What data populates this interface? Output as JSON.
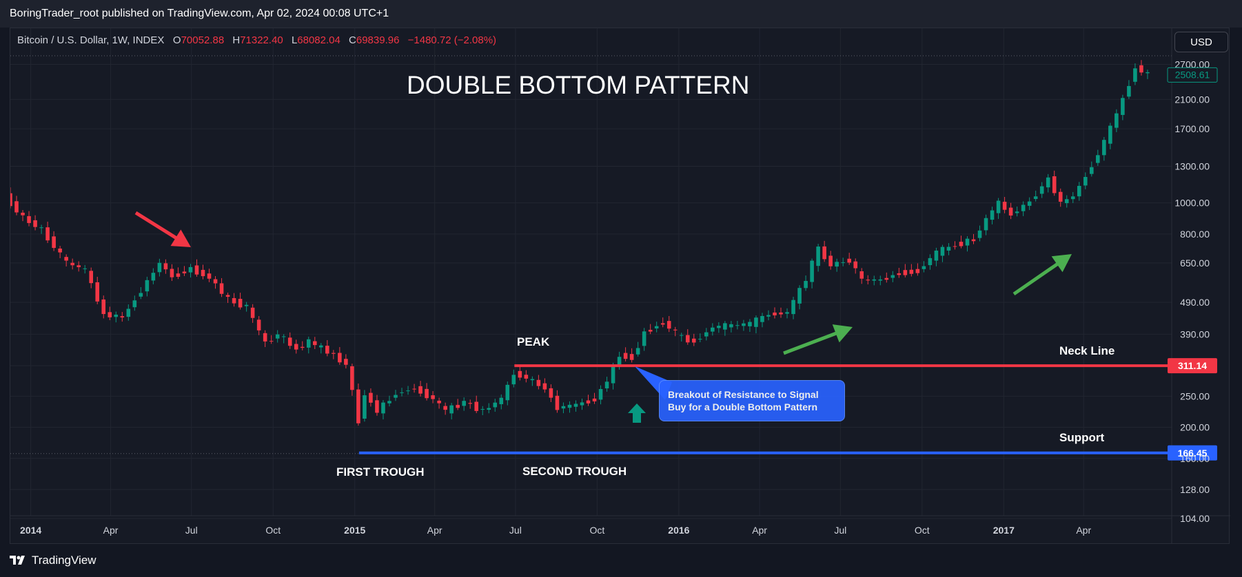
{
  "header": {
    "publisher_line": "BoringTrader_root published on TradingView.com, Apr 02, 2024 00:08 UTC+1"
  },
  "legend": {
    "symbol": "Bitcoin / U.S. Dollar, 1W, INDEX",
    "open_label": "O",
    "open": "70052.88",
    "high_label": "H",
    "high": "71322.40",
    "low_label": "L",
    "low": "68082.04",
    "close_label": "C",
    "close": "69839.96",
    "change": "−1480.72 (−2.08%)"
  },
  "currency_button": "USD",
  "footer": {
    "brand": "TradingView"
  },
  "annotations": {
    "title": "DOUBLE BOTTOM PATTERN",
    "peak": "PEAK",
    "first_trough": "FIRST TROUGH",
    "second_trough": "SECOND TROUGH",
    "neck_line": "Neck Line",
    "support": "Support",
    "callout": "Breakout of Resistance  to Signal Buy for a Double Bottom Pattern"
  },
  "colors": {
    "up": "#089981",
    "down": "#f23645",
    "neck_line": "#f23645",
    "support_line": "#2962ff",
    "arrow_down": "#f23645",
    "arrow_up": "#4caf50",
    "background": "#161a25"
  },
  "chart_data": {
    "type": "candlestick",
    "title": "Bitcoin / U.S. Dollar, 1W, INDEX",
    "y_scale": "log",
    "ylim": [
      104,
      2900
    ],
    "y_ticks": [
      "104.00",
      "128.00",
      "160.00",
      "200.00",
      "250.00",
      "311.14",
      "390.00",
      "490.00",
      "650.00",
      "800.00",
      "1000.00",
      "1300.00",
      "1700.00",
      "2100.00",
      "2700.00"
    ],
    "y_tick_values": [
      104,
      128,
      160,
      200,
      250,
      311,
      390,
      490,
      650,
      800,
      1000,
      1300,
      1700,
      2100,
      2700
    ],
    "x_labels": [
      "2014",
      "Apr",
      "Jul",
      "Oct",
      "2015",
      "Apr",
      "Jul",
      "Oct",
      "2016",
      "Apr",
      "Jul",
      "Oct",
      "2017",
      "Apr"
    ],
    "x_label_dates": [
      "2014-01-01",
      "2014-04-01",
      "2014-07-01",
      "2014-10-01",
      "2015-01-01",
      "2015-04-01",
      "2015-07-01",
      "2015-10-01",
      "2016-01-01",
      "2016-04-01",
      "2016-07-01",
      "2016-10-01",
      "2017-01-01",
      "2017-04-01"
    ],
    "x_start_date": "2013-12-09",
    "x_end_date": "2017-06-26",
    "levels": [
      {
        "name": "Neck Line",
        "price": 311.14,
        "label": "311.14",
        "start_date": "2015-07-06"
      },
      {
        "name": "Support",
        "price": 166.45,
        "label": "166.45",
        "start_date": "2015-01-12"
      }
    ],
    "current_price": {
      "price": 2508.61,
      "label": "2508.61"
    },
    "close_series": [
      [
        "2013-12-09",
        1050
      ],
      [
        "2013-12-30",
        900
      ],
      [
        "2014-01-20",
        825
      ],
      [
        "2014-02-17",
        650
      ],
      [
        "2014-03-10",
        620
      ],
      [
        "2014-03-31",
        450
      ],
      [
        "2014-04-21",
        440
      ],
      [
        "2014-05-19",
        570
      ],
      [
        "2014-06-02",
        650
      ],
      [
        "2014-06-16",
        590
      ],
      [
        "2014-07-07",
        625
      ],
      [
        "2014-07-28",
        585
      ],
      [
        "2014-08-18",
        500
      ],
      [
        "2014-09-08",
        475
      ],
      [
        "2014-09-29",
        365
      ],
      [
        "2014-10-13",
        390
      ],
      [
        "2014-11-03",
        350
      ],
      [
        "2014-11-17",
        370
      ],
      [
        "2014-12-08",
        345
      ],
      [
        "2014-12-29",
        315
      ],
      [
        "2015-01-12",
        210
      ],
      [
        "2015-01-19",
        255
      ],
      [
        "2015-02-02",
        225
      ],
      [
        "2015-02-23",
        255
      ],
      [
        "2015-03-16",
        265
      ],
      [
        "2015-04-06",
        245
      ],
      [
        "2015-04-20",
        225
      ],
      [
        "2015-05-11",
        240
      ],
      [
        "2015-06-01",
        225
      ],
      [
        "2015-06-22",
        245
      ],
      [
        "2015-07-06",
        295
      ],
      [
        "2015-07-20",
        285
      ],
      [
        "2015-08-10",
        265
      ],
      [
        "2015-08-24",
        230
      ],
      [
        "2015-09-14",
        235
      ],
      [
        "2015-10-05",
        245
      ],
      [
        "2015-10-19",
        280
      ],
      [
        "2015-11-02",
        335
      ],
      [
        "2015-11-16",
        330
      ],
      [
        "2015-11-30",
        395
      ],
      [
        "2015-12-21",
        425
      ],
      [
        "2016-01-11",
        380
      ],
      [
        "2016-01-25",
        370
      ],
      [
        "2016-02-15",
        410
      ],
      [
        "2016-03-07",
        415
      ],
      [
        "2016-03-28",
        420
      ],
      [
        "2016-04-18",
        450
      ],
      [
        "2016-05-09",
        455
      ],
      [
        "2016-05-30",
        580
      ],
      [
        "2016-06-13",
        720
      ],
      [
        "2016-06-27",
        640
      ],
      [
        "2016-07-18",
        665
      ],
      [
        "2016-08-01",
        575
      ],
      [
        "2016-08-22",
        575
      ],
      [
        "2016-09-12",
        605
      ],
      [
        "2016-10-03",
        615
      ],
      [
        "2016-10-24",
        700
      ],
      [
        "2016-11-14",
        740
      ],
      [
        "2016-12-05",
        770
      ],
      [
        "2016-12-19",
        890
      ],
      [
        "2017-01-02",
        1000
      ],
      [
        "2017-01-16",
        920
      ],
      [
        "2017-02-06",
        1010
      ],
      [
        "2017-02-27",
        1190
      ],
      [
        "2017-03-13",
        1000
      ],
      [
        "2017-03-27",
        1050
      ],
      [
        "2017-04-10",
        1210
      ],
      [
        "2017-05-01",
        1550
      ],
      [
        "2017-05-22",
        2100
      ],
      [
        "2017-06-05",
        2650
      ],
      [
        "2017-06-19",
        2508.61
      ]
    ]
  }
}
